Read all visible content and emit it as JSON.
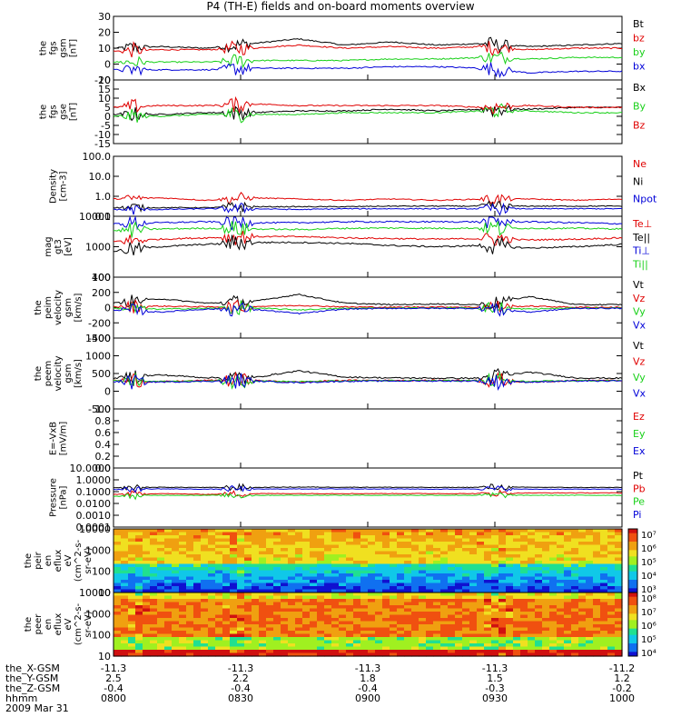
{
  "title": "P4 (TH-E) fields and on-board moments overview",
  "colors": {
    "black": "#000000",
    "red": "#e00000",
    "green": "#18d018",
    "blue": "#0000d8"
  },
  "chart_data": [
    {
      "type": "line",
      "panel": "fgs_gsm",
      "ylabel_lines": [
        "the",
        "fgs",
        "gsm",
        "[nT]"
      ],
      "ylim": [
        -10,
        30
      ],
      "yticks": [
        "30",
        "20",
        "10",
        "0",
        "-10"
      ],
      "legend": [
        "Bt",
        "bz",
        "by",
        "bx"
      ],
      "series": [
        {
          "name": "Bt",
          "levels": [
            10,
            11,
            10,
            13,
            16,
            12,
            14,
            12,
            13,
            11,
            12,
            13
          ]
        },
        {
          "name": "bz",
          "levels": [
            8,
            9,
            9,
            10,
            12,
            10,
            11,
            10,
            11,
            9,
            10,
            10
          ]
        },
        {
          "name": "by",
          "levels": [
            1,
            1,
            1,
            2,
            2,
            2,
            3,
            3,
            4,
            3,
            4,
            4
          ]
        },
        {
          "name": "bx",
          "levels": [
            -4,
            -4,
            -4,
            -3,
            -3,
            -3,
            -2,
            -2,
            -3,
            -6,
            -5,
            -5
          ]
        }
      ]
    },
    {
      "type": "line",
      "panel": "fgs_gse",
      "ylabel_lines": [
        "the",
        "fgs",
        "gse",
        "[nT]"
      ],
      "ylim": [
        -15,
        20
      ],
      "yticks": [
        "20",
        "15",
        "10",
        "5",
        "0",
        "-5",
        "-10",
        "-15"
      ],
      "legend": [
        "Bx",
        "By",
        "Bz"
      ],
      "series": [
        {
          "name": "Bx",
          "levels": [
            1,
            1,
            2,
            2,
            3,
            3,
            4,
            3,
            4,
            4,
            5,
            5
          ]
        },
        {
          "name": "By",
          "levels": [
            0,
            0,
            1,
            1,
            1,
            2,
            2,
            2,
            3,
            3,
            2,
            2
          ]
        },
        {
          "name": "Bz",
          "levels": [
            5,
            6,
            6,
            7,
            6,
            6,
            6,
            6,
            5,
            6,
            5,
            5
          ]
        }
      ]
    },
    {
      "type": "line",
      "panel": "density",
      "ylabel_lines": [
        "Density",
        "[cm-3]"
      ],
      "ylim": [
        0.1,
        100
      ],
      "scale": "log",
      "yticks": [
        "100.0",
        "10.0",
        "1.0",
        "0.1"
      ],
      "legend": [
        "Ne",
        "Ni",
        "Npot"
      ],
      "series": [
        {
          "name": "Ne",
          "levels": [
            0.7,
            0.8,
            0.6,
            0.8,
            0.7,
            0.6,
            0.7,
            0.6,
            0.7,
            0.7,
            0.6,
            0.7
          ]
        },
        {
          "name": "Ni",
          "levels": [
            0.25,
            0.25,
            0.25,
            0.28,
            0.28,
            0.28,
            0.3,
            0.3,
            0.3,
            0.3,
            0.3,
            0.3
          ]
        },
        {
          "name": "Npot",
          "levels": [
            0.2,
            0.2,
            0.22,
            0.22,
            0.2,
            0.22,
            0.22,
            0.22,
            0.22,
            0.22,
            0.22,
            0.22
          ]
        }
      ]
    },
    {
      "type": "line",
      "panel": "temperature",
      "ylabel_lines": [
        "mag",
        "gt3",
        "[eV]"
      ],
      "ylim": [
        100,
        10000
      ],
      "scale": "log",
      "yticks": [
        "10000",
        "1000",
        "100"
      ],
      "legend": [
        "Te⊥",
        "Te||",
        "Ti⊥",
        "Ti||"
      ],
      "series": [
        {
          "name": "Te⊥",
          "levels": [
            1500,
            1800,
            2000,
            2200,
            2200,
            2000,
            1900,
            1800,
            1900,
            1700,
            1800,
            2000
          ]
        },
        {
          "name": "Te||",
          "levels": [
            700,
            1000,
            1200,
            1400,
            1400,
            1300,
            1100,
            1000,
            1100,
            900,
            1000,
            1200
          ]
        },
        {
          "name": "Ti⊥",
          "levels": [
            6000,
            6500,
            7000,
            6500,
            6500,
            7000,
            7000,
            7000,
            7000,
            7000,
            6500,
            6000
          ]
        },
        {
          "name": "Ti||",
          "levels": [
            3500,
            4000,
            4200,
            4000,
            3800,
            4200,
            4300,
            4200,
            4300,
            4200,
            4200,
            4000
          ]
        }
      ]
    },
    {
      "type": "line",
      "panel": "peim_velocity",
      "ylabel_lines": [
        "the",
        "peim",
        "velocity",
        "gsm",
        "[km/s]"
      ],
      "ylim": [
        -400,
        400
      ],
      "yticks": [
        "400",
        "200",
        "0",
        "-200",
        "-400"
      ],
      "legend": [
        "Vt",
        "Vz",
        "Vy",
        "Vx"
      ],
      "series": [
        {
          "name": "Vt",
          "levels": [
            60,
            120,
            60,
            80,
            180,
            60,
            40,
            50,
            40,
            150,
            40,
            40
          ]
        },
        {
          "name": "Vz",
          "levels": [
            10,
            20,
            10,
            15,
            30,
            10,
            5,
            10,
            5,
            20,
            5,
            5
          ]
        },
        {
          "name": "Vy",
          "levels": [
            -10,
            -20,
            -10,
            -5,
            -30,
            -10,
            -5,
            -5,
            -5,
            -20,
            -5,
            -5
          ]
        },
        {
          "name": "Vx",
          "levels": [
            -30,
            -60,
            -20,
            -20,
            -80,
            -20,
            -10,
            -10,
            -10,
            -60,
            -10,
            -10
          ]
        }
      ]
    },
    {
      "type": "line",
      "panel": "peem_velocity",
      "ylabel_lines": [
        "the",
        "peem",
        "velocity",
        "gsm",
        "[km/s]"
      ],
      "ylim": [
        -1000,
        1500
      ],
      "yticks": [
        "1500",
        "1000",
        "500",
        "0",
        "-500"
      ],
      "legend": [
        "Vt",
        "Vz",
        "Vy",
        "Vx"
      ],
      "series": [
        {
          "name": "Vt",
          "levels": [
            80,
            200,
            100,
            90,
            350,
            120,
            90,
            80,
            80,
            300,
            90,
            80
          ]
        },
        {
          "name": "Vz",
          "levels": [
            0,
            -50,
            0,
            0,
            -60,
            0,
            0,
            0,
            0,
            -60,
            0,
            0
          ]
        },
        {
          "name": "Vy",
          "levels": [
            -20,
            -40,
            -20,
            -10,
            -50,
            -20,
            -10,
            -10,
            -10,
            -40,
            -10,
            -10
          ]
        },
        {
          "name": "Vx",
          "levels": [
            -40,
            -60,
            -30,
            -20,
            -80,
            -30,
            -20,
            -20,
            -20,
            -60,
            -20,
            -20
          ]
        }
      ]
    },
    {
      "type": "line",
      "panel": "efield",
      "ylabel_lines": [
        "E=-VxB",
        "[mV/m]"
      ],
      "ylim": [
        0,
        1.0
      ],
      "yticks": [
        "1.0",
        "0.8",
        "0.6",
        "0.4",
        "0.2",
        "0.0"
      ],
      "legend": [
        "Ez",
        "Ey",
        "Ex"
      ],
      "series": []
    },
    {
      "type": "line",
      "panel": "pressure",
      "ylabel_lines": [
        "Pressure",
        "[nPa]"
      ],
      "ylim": [
        0.0001,
        10
      ],
      "scale": "log",
      "yticks": [
        "10.0000",
        "1.0000",
        "0.1000",
        "0.0100",
        "0.0010",
        "0.0001"
      ],
      "legend": [
        "Pt",
        "Pb",
        "Pe",
        "Pi"
      ],
      "series": [
        {
          "name": "Pt",
          "levels": [
            0.22,
            0.25,
            0.24,
            0.24,
            0.26,
            0.25,
            0.25,
            0.24,
            0.25,
            0.25,
            0.24,
            0.24
          ]
        },
        {
          "name": "Pb",
          "levels": [
            0.06,
            0.07,
            0.06,
            0.07,
            0.07,
            0.07,
            0.07,
            0.07,
            0.07,
            0.08,
            0.08,
            0.08
          ]
        },
        {
          "name": "Pe",
          "levels": [
            0.04,
            0.05,
            0.05,
            0.05,
            0.05,
            0.05,
            0.05,
            0.05,
            0.05,
            0.05,
            0.05,
            0.05
          ]
        },
        {
          "name": "Pi",
          "levels": [
            0.16,
            0.18,
            0.17,
            0.17,
            0.18,
            0.18,
            0.18,
            0.17,
            0.18,
            0.17,
            0.17,
            0.17
          ]
        }
      ]
    },
    {
      "type": "heatmap",
      "panel": "peir_spectrogram",
      "ylabel_lines": [
        "the",
        "peir",
        "en",
        "eflux",
        "eV",
        "(cm^2-s-",
        "sr-eV)"
      ],
      "ylim": [
        10,
        10000
      ],
      "scale": "log",
      "yticks": [
        "10000",
        "1000",
        "100",
        "10"
      ],
      "colorbar_ticks": [
        "10⁷",
        "10⁶",
        "10⁵",
        "10⁴",
        "10³"
      ]
    },
    {
      "type": "heatmap",
      "panel": "peer_spectrogram",
      "ylabel_lines": [
        "the",
        "peer",
        "en",
        "eflux",
        "eV",
        "(cm^2-s-",
        "sr-eV)"
      ],
      "ylim": [
        10,
        10000
      ],
      "scale": "log",
      "yticks": [
        "10000",
        "1000",
        "100",
        "10"
      ],
      "colorbar_ticks": [
        "10⁸",
        "10⁷",
        "10⁶",
        "10⁵",
        "10⁴"
      ]
    }
  ],
  "ephemeris": {
    "labels": [
      "the_X-GSM",
      "the_Y-GSM",
      "the_Z-GSM",
      "hhmm",
      "2009 Mar 31"
    ],
    "ticks": [
      {
        "x": "-11.3",
        "y": "2.5",
        "z": "-0.4",
        "t": "0800"
      },
      {
        "x": "-11.3",
        "y": "2.2",
        "z": "-0.4",
        "t": "0830"
      },
      {
        "x": "-11.3",
        "y": "1.8",
        "z": "-0.4",
        "t": "0900"
      },
      {
        "x": "-11.3",
        "y": "1.5",
        "z": "-0.3",
        "t": "0930"
      },
      {
        "x": "-11.2",
        "y": "1.2",
        "z": "-0.2",
        "t": "1000"
      }
    ]
  }
}
